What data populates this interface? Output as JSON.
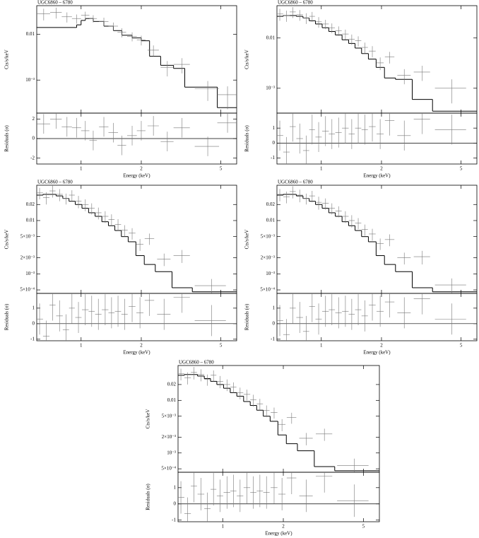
{
  "chart_data": [
    {
      "type": "spectrum",
      "title": "UGC6860 – 6780",
      "ylabel": "Cts/s/keV",
      "log_x": true,
      "log_y": true,
      "xlim": [
        0.6,
        6
      ],
      "ylim": [
        0.00019,
        0.042
      ],
      "yticks": [
        0.01,
        {
          "value": 0.001,
          "label": "10⁻³"
        }
      ],
      "x": [
        0.65,
        0.75,
        0.85,
        0.95,
        1.05,
        1.15,
        1.3,
        1.45,
        1.6,
        1.8,
        2.0,
        2.3,
        2.7,
        3.2,
        4.3,
        5.4
      ],
      "xerr": [
        0.05,
        0.05,
        0.05,
        0.05,
        0.05,
        0.05,
        0.07,
        0.08,
        0.08,
        0.1,
        0.1,
        0.15,
        0.2,
        0.3,
        0.6,
        0.6
      ],
      "values": [
        0.028,
        0.03,
        0.024,
        0.022,
        0.026,
        0.022,
        0.019,
        0.015,
        0.011,
        0.009,
        0.0075,
        0.0045,
        0.0019,
        0.0022,
        0.00065,
        0.00048
      ],
      "yerr": [
        0.008,
        0.008,
        0.006,
        0.005,
        0.005,
        0.004,
        0.004,
        0.003,
        0.0025,
        0.002,
        0.0018,
        0.0012,
        0.0007,
        0.0008,
        0.0003,
        0.00025
      ],
      "model": {
        "bins": [
          0.6,
          0.95,
          1.0,
          1.05,
          1.15,
          1.3,
          1.45,
          1.6,
          1.8,
          2.0,
          2.2,
          2.5,
          2.9,
          3.3,
          4.8,
          6
        ],
        "values": [
          0.014,
          0.016,
          0.02,
          0.022,
          0.019,
          0.015,
          0.012,
          0.0095,
          0.0083,
          0.0072,
          0.0033,
          0.0021,
          0.0018,
          0.0007,
          0.00025
        ]
      }
    },
    {
      "type": "residuals",
      "ylabel": "Residuals (σ)",
      "xlabel": "Energy (keV)",
      "log_x": true,
      "log_y": false,
      "xlim": [
        0.6,
        6
      ],
      "ylim": [
        -2.6,
        2.6
      ],
      "xticks": [
        1,
        2,
        5
      ],
      "yticks": [
        -2,
        0,
        2
      ],
      "hline": 0,
      "x": [
        0.65,
        0.75,
        0.85,
        0.95,
        1.05,
        1.15,
        1.3,
        1.45,
        1.6,
        1.8,
        2.0,
        2.3,
        2.7,
        3.2,
        4.3,
        5.4
      ],
      "xerr": [
        0.05,
        0.05,
        0.05,
        0.05,
        0.05,
        0.05,
        0.07,
        0.08,
        0.08,
        0.1,
        0.1,
        0.15,
        0.2,
        0.3,
        0.6,
        0.6
      ],
      "values": [
        1.5,
        2.0,
        1.2,
        1.1,
        0.8,
        -0.2,
        1.2,
        0.6,
        -0.7,
        0.3,
        0.8,
        1.3,
        -0.3,
        1.1,
        -0.8,
        1.6
      ],
      "yerr": [
        1,
        1,
        1,
        1,
        1,
        1,
        1,
        1,
        1,
        1,
        1,
        1,
        1,
        1,
        1,
        1
      ]
    },
    {
      "type": "spectrum",
      "title": "UGC6860 – 6780",
      "ylabel": "Cts/s/keV",
      "log_x": true,
      "log_y": true,
      "xlim": [
        0.6,
        6
      ],
      "ylim": [
        0.00032,
        0.044
      ],
      "yticks": [
        0.01,
        {
          "value": 0.001,
          "label": "10⁻³"
        }
      ],
      "x": [
        0.62,
        0.67,
        0.72,
        0.78,
        0.84,
        0.9,
        0.97,
        1.05,
        1.13,
        1.22,
        1.32,
        1.42,
        1.53,
        1.65,
        1.8,
        1.97,
        2.2,
        2.6,
        3.2,
        4.5
      ],
      "xerr": [
        0.025,
        0.025,
        0.025,
        0.03,
        0.03,
        0.03,
        0.035,
        0.04,
        0.04,
        0.045,
        0.05,
        0.05,
        0.055,
        0.06,
        0.07,
        0.08,
        0.12,
        0.2,
        0.3,
        0.8
      ],
      "values": [
        0.03,
        0.028,
        0.033,
        0.029,
        0.025,
        0.027,
        0.021,
        0.019,
        0.016,
        0.014,
        0.012,
        0.0095,
        0.0088,
        0.0065,
        0.0055,
        0.0032,
        0.0042,
        0.0018,
        0.0021,
        0.001
      ],
      "yerr": [
        0.008,
        0.007,
        0.008,
        0.007,
        0.006,
        0.006,
        0.005,
        0.004,
        0.0035,
        0.003,
        0.0027,
        0.0022,
        0.002,
        0.0016,
        0.0014,
        0.0009,
        0.0011,
        0.0006,
        0.0007,
        0.0005
      ],
      "model": {
        "bins": [
          0.6,
          0.645,
          0.695,
          0.75,
          0.81,
          0.87,
          0.935,
          1.01,
          1.09,
          1.175,
          1.27,
          1.37,
          1.475,
          1.59,
          1.72,
          1.88,
          2.07,
          2.35,
          2.85,
          3.6,
          6
        ],
        "values": [
          0.027,
          0.028,
          0.028,
          0.027,
          0.025,
          0.022,
          0.019,
          0.016,
          0.0135,
          0.0115,
          0.0092,
          0.0078,
          0.0063,
          0.0049,
          0.0038,
          0.0026,
          0.0016,
          0.0015,
          0.0006,
          0.00035
        ]
      }
    },
    {
      "type": "residuals",
      "ylabel": "Residuals (σ)",
      "xlabel": "Energy (keV)",
      "log_x": true,
      "log_y": false,
      "xlim": [
        0.6,
        6
      ],
      "ylim": [
        -1.4,
        2
      ],
      "xticks": [
        1,
        2,
        5
      ],
      "yticks": [
        -1,
        0,
        1
      ],
      "hline": 0,
      "x": [
        0.62,
        0.67,
        0.72,
        0.78,
        0.84,
        0.9,
        0.97,
        1.05,
        1.13,
        1.22,
        1.32,
        1.42,
        1.53,
        1.65,
        1.8,
        1.97,
        2.2,
        2.6,
        3.2,
        4.5
      ],
      "xerr": [
        0.025,
        0.025,
        0.025,
        0.03,
        0.03,
        0.03,
        0.035,
        0.04,
        0.04,
        0.045,
        0.05,
        0.05,
        0.055,
        0.06,
        0.07,
        0.08,
        0.12,
        0.2,
        0.3,
        0.8
      ],
      "values": [
        0.5,
        -0.6,
        1.1,
        0.3,
        -0.5,
        0.9,
        0.4,
        0.8,
        0.6,
        0.7,
        1.0,
        0.6,
        1.0,
        0.9,
        1.1,
        0.6,
        1.5,
        0.5,
        1.6,
        0.9
      ],
      "yerr": [
        1,
        1,
        1,
        1,
        1,
        1,
        1,
        1,
        1,
        1,
        1,
        1,
        1,
        1,
        1,
        1,
        1,
        1,
        1,
        1
      ]
    },
    {
      "type": "spectrum",
      "title": "UGC6860 – 6780",
      "ylabel": "Cts/s/keV",
      "log_x": true,
      "log_y": true,
      "xlim": [
        0.6,
        6
      ],
      "ylim": [
        0.00043,
        0.046
      ],
      "yticks": [
        0.02,
        0.01,
        {
          "value": 0.005,
          "label": "5×10⁻³"
        },
        {
          "value": 0.002,
          "label": "2×10⁻³"
        },
        {
          "value": 0.001,
          "label": "10⁻³"
        },
        {
          "value": 0.0005,
          "label": "5×10⁻⁴"
        }
      ],
      "x": [
        0.62,
        0.67,
        0.72,
        0.78,
        0.84,
        0.9,
        0.97,
        1.05,
        1.13,
        1.22,
        1.32,
        1.42,
        1.53,
        1.65,
        1.8,
        1.97,
        2.2,
        2.6,
        3.2,
        4.5
      ],
      "xerr": [
        0.025,
        0.025,
        0.025,
        0.03,
        0.03,
        0.03,
        0.035,
        0.04,
        0.04,
        0.045,
        0.05,
        0.05,
        0.055,
        0.06,
        0.07,
        0.08,
        0.12,
        0.2,
        0.3,
        0.8
      ],
      "values": [
        0.033,
        0.027,
        0.036,
        0.031,
        0.026,
        0.03,
        0.023,
        0.02,
        0.017,
        0.014,
        0.012,
        0.0105,
        0.0085,
        0.0066,
        0.0058,
        0.0036,
        0.0046,
        0.0019,
        0.0022,
        0.0006
      ],
      "yerr": [
        0.008,
        0.007,
        0.009,
        0.008,
        0.006,
        0.007,
        0.006,
        0.005,
        0.004,
        0.0035,
        0.003,
        0.0026,
        0.0021,
        0.0016,
        0.0014,
        0.0009,
        0.0011,
        0.0005,
        0.0006,
        0.0002
      ],
      "model": {
        "bins": [
          0.6,
          0.645,
          0.695,
          0.75,
          0.81,
          0.87,
          0.935,
          1.01,
          1.09,
          1.175,
          1.27,
          1.37,
          1.475,
          1.59,
          1.72,
          1.88,
          2.07,
          2.35,
          2.85,
          3.6,
          6
        ],
        "values": [
          0.03,
          0.031,
          0.031,
          0.029,
          0.026,
          0.023,
          0.02,
          0.017,
          0.014,
          0.012,
          0.0095,
          0.008,
          0.0065,
          0.005,
          0.004,
          0.0022,
          0.0015,
          0.0011,
          0.00055,
          0.00046
        ]
      }
    },
    {
      "type": "residuals",
      "ylabel": "Residuals (σ)",
      "xlabel": "Energy (keV)",
      "log_x": true,
      "log_y": false,
      "xlim": [
        0.6,
        6
      ],
      "ylim": [
        -1.1,
        1.95
      ],
      "xticks": [
        1,
        2,
        5
      ],
      "yticks": [
        -1,
        0,
        1
      ],
      "hline": 0,
      "x": [
        0.62,
        0.67,
        0.72,
        0.78,
        0.84,
        0.9,
        0.97,
        1.05,
        1.13,
        1.22,
        1.32,
        1.42,
        1.53,
        1.65,
        1.8,
        1.97,
        2.2,
        2.6,
        3.2,
        4.5
      ],
      "xerr": [
        0.025,
        0.025,
        0.025,
        0.03,
        0.03,
        0.03,
        0.035,
        0.04,
        0.04,
        0.045,
        0.05,
        0.05,
        0.055,
        0.06,
        0.07,
        0.08,
        0.12,
        0.2,
        0.3,
        0.8
      ],
      "values": [
        0.3,
        -0.8,
        1.2,
        0.5,
        -0.4,
        1.0,
        0.4,
        0.9,
        0.8,
        0.6,
        0.9,
        0.7,
        0.8,
        0.6,
        1.1,
        0.7,
        1.5,
        0.6,
        1.7,
        0.2
      ],
      "yerr": [
        1,
        1,
        1,
        1,
        1,
        1,
        1,
        1,
        1,
        1,
        1,
        1,
        1,
        1,
        1,
        1,
        1,
        1,
        1,
        1
      ]
    },
    {
      "type": "spectrum",
      "title": "UGC6860 – 6780",
      "ylabel": "Cts/s/keV",
      "log_x": true,
      "log_y": true,
      "xlim": [
        0.6,
        6
      ],
      "ylim": [
        0.00043,
        0.046
      ],
      "yticks": [
        0.02,
        0.01,
        {
          "value": 0.005,
          "label": "5×10⁻³"
        },
        {
          "value": 0.002,
          "label": "2×10⁻³"
        },
        {
          "value": 0.001,
          "label": "10⁻³"
        },
        {
          "value": 0.0005,
          "label": "5×10⁻⁴"
        }
      ],
      "x": [
        0.62,
        0.67,
        0.72,
        0.78,
        0.84,
        0.9,
        0.97,
        1.05,
        1.13,
        1.22,
        1.32,
        1.42,
        1.53,
        1.65,
        1.8,
        1.97,
        2.2,
        2.6,
        3.2,
        4.5
      ],
      "xerr": [
        0.025,
        0.025,
        0.025,
        0.03,
        0.03,
        0.03,
        0.035,
        0.04,
        0.04,
        0.045,
        0.05,
        0.05,
        0.055,
        0.06,
        0.07,
        0.08,
        0.12,
        0.2,
        0.3,
        0.8
      ],
      "values": [
        0.031,
        0.028,
        0.035,
        0.03,
        0.026,
        0.029,
        0.022,
        0.021,
        0.017,
        0.015,
        0.012,
        0.01,
        0.009,
        0.0068,
        0.0056,
        0.0037,
        0.0044,
        0.002,
        0.0021,
        0.00062
      ],
      "yerr": [
        0.008,
        0.007,
        0.009,
        0.008,
        0.006,
        0.007,
        0.006,
        0.005,
        0.004,
        0.0035,
        0.003,
        0.0026,
        0.0021,
        0.0016,
        0.0014,
        0.0009,
        0.0011,
        0.0005,
        0.0006,
        0.0002
      ],
      "model": {
        "bins": [
          0.6,
          0.645,
          0.695,
          0.75,
          0.81,
          0.87,
          0.935,
          1.01,
          1.09,
          1.175,
          1.27,
          1.37,
          1.475,
          1.59,
          1.72,
          1.88,
          2.07,
          2.35,
          2.85,
          3.6,
          6
        ],
        "values": [
          0.03,
          0.031,
          0.031,
          0.029,
          0.026,
          0.023,
          0.02,
          0.017,
          0.014,
          0.012,
          0.0095,
          0.008,
          0.0065,
          0.005,
          0.004,
          0.0022,
          0.0015,
          0.0011,
          0.00055,
          0.00046
        ]
      }
    },
    {
      "type": "residuals",
      "ylabel": "Residuals (σ)",
      "xlabel": "Energy (keV)",
      "log_x": true,
      "log_y": false,
      "xlim": [
        0.6,
        6
      ],
      "ylim": [
        -1.1,
        1.95
      ],
      "xticks": [
        1,
        2,
        5
      ],
      "yticks": [
        -1,
        0,
        1
      ],
      "hline": 0,
      "x": [
        0.62,
        0.67,
        0.72,
        0.78,
        0.84,
        0.9,
        0.97,
        1.05,
        1.13,
        1.22,
        1.32,
        1.42,
        1.53,
        1.65,
        1.8,
        1.97,
        2.2,
        2.6,
        3.2,
        4.5
      ],
      "xerr": [
        0.025,
        0.025,
        0.025,
        0.03,
        0.03,
        0.03,
        0.035,
        0.04,
        0.04,
        0.045,
        0.05,
        0.05,
        0.055,
        0.06,
        0.07,
        0.08,
        0.12,
        0.2,
        0.3,
        0.8
      ],
      "values": [
        0.2,
        -0.7,
        1.0,
        0.4,
        -0.5,
        1.1,
        0.3,
        0.8,
        0.9,
        0.7,
        0.8,
        0.6,
        0.9,
        0.5,
        1.2,
        0.8,
        1.4,
        0.7,
        1.6,
        0.3
      ],
      "yerr": [
        1,
        1,
        1,
        1,
        1,
        1,
        1,
        1,
        1,
        1,
        1,
        1,
        1,
        1,
        1,
        1,
        1,
        1,
        1,
        1
      ]
    },
    {
      "type": "spectrum",
      "title": "UGC6860 – 6780",
      "ylabel": "Cts/s/keV",
      "log_x": true,
      "log_y": true,
      "xlim": [
        0.6,
        6
      ],
      "ylim": [
        0.00043,
        0.046
      ],
      "yticks": [
        0.02,
        0.01,
        {
          "value": 0.005,
          "label": "5×10⁻³"
        },
        {
          "value": 0.002,
          "label": "2×10⁻³"
        },
        {
          "value": 0.001,
          "label": "10⁻³"
        },
        {
          "value": 0.0005,
          "label": "5×10⁻⁴"
        }
      ],
      "x": [
        0.62,
        0.67,
        0.72,
        0.78,
        0.84,
        0.9,
        0.97,
        1.05,
        1.13,
        1.22,
        1.32,
        1.42,
        1.53,
        1.65,
        1.8,
        1.97,
        2.2,
        2.6,
        3.2,
        4.5
      ],
      "xerr": [
        0.025,
        0.025,
        0.025,
        0.03,
        0.03,
        0.03,
        0.035,
        0.04,
        0.04,
        0.045,
        0.05,
        0.05,
        0.055,
        0.06,
        0.07,
        0.08,
        0.12,
        0.2,
        0.3,
        0.8
      ],
      "values": [
        0.032,
        0.027,
        0.034,
        0.031,
        0.025,
        0.03,
        0.023,
        0.02,
        0.018,
        0.014,
        0.013,
        0.0102,
        0.0086,
        0.0064,
        0.0059,
        0.0035,
        0.0047,
        0.0019,
        0.0023,
        0.00058
      ],
      "yerr": [
        0.008,
        0.007,
        0.009,
        0.008,
        0.006,
        0.007,
        0.006,
        0.005,
        0.004,
        0.0035,
        0.003,
        0.0026,
        0.0021,
        0.0016,
        0.0014,
        0.0009,
        0.0011,
        0.0005,
        0.0006,
        0.0002
      ],
      "model": {
        "bins": [
          0.6,
          0.645,
          0.695,
          0.75,
          0.81,
          0.87,
          0.935,
          1.01,
          1.09,
          1.175,
          1.27,
          1.37,
          1.475,
          1.59,
          1.72,
          1.88,
          2.07,
          2.35,
          2.85,
          3.6,
          6
        ],
        "values": [
          0.03,
          0.031,
          0.031,
          0.029,
          0.026,
          0.023,
          0.02,
          0.017,
          0.014,
          0.012,
          0.0095,
          0.008,
          0.0065,
          0.005,
          0.004,
          0.0022,
          0.0015,
          0.0011,
          0.00055,
          0.00046
        ]
      }
    },
    {
      "type": "residuals",
      "ylabel": "Residuals (σ)",
      "xlabel": "Energy (keV)",
      "log_x": true,
      "log_y": false,
      "xlim": [
        0.6,
        6
      ],
      "ylim": [
        -1.1,
        1.95
      ],
      "xticks": [
        1,
        2,
        5
      ],
      "yticks": [
        -1,
        0,
        1
      ],
      "hline": 0,
      "x": [
        0.62,
        0.67,
        0.72,
        0.78,
        0.84,
        0.9,
        0.97,
        1.05,
        1.13,
        1.22,
        1.32,
        1.42,
        1.53,
        1.65,
        1.8,
        1.97,
        2.2,
        2.6,
        3.2,
        4.5
      ],
      "xerr": [
        0.025,
        0.025,
        0.025,
        0.03,
        0.03,
        0.03,
        0.035,
        0.04,
        0.04,
        0.045,
        0.05,
        0.05,
        0.055,
        0.06,
        0.07,
        0.08,
        0.12,
        0.2,
        0.3,
        0.8
      ],
      "values": [
        0.4,
        -0.6,
        1.1,
        0.6,
        -0.3,
        0.9,
        0.5,
        0.7,
        0.8,
        0.5,
        1.0,
        0.7,
        0.8,
        0.7,
        1.0,
        0.6,
        1.6,
        0.5,
        1.7,
        0.2
      ],
      "yerr": [
        1,
        1,
        1,
        1,
        1,
        1,
        1,
        1,
        1,
        1,
        1,
        1,
        1,
        1,
        1,
        1,
        1,
        1,
        1,
        1
      ]
    }
  ]
}
